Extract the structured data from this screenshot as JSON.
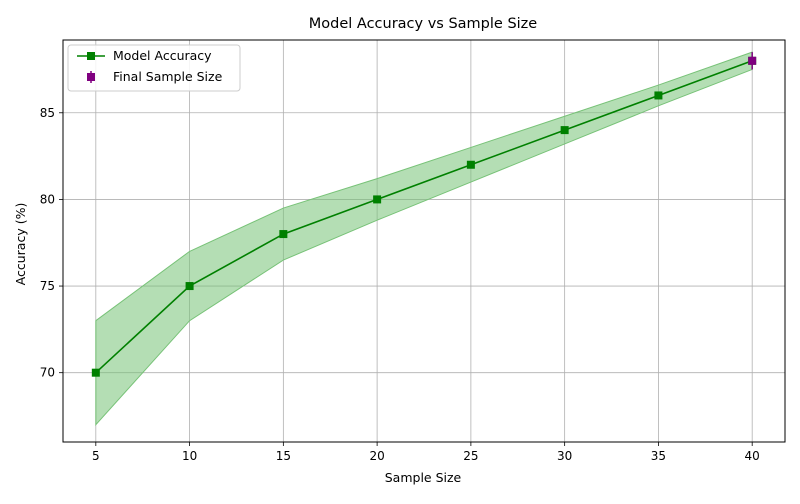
{
  "chart_data": {
    "type": "line",
    "title": "Model Accuracy vs Sample Size",
    "xlabel": "Sample Size",
    "ylabel": "Accuracy (%)",
    "xlim": [
      3.25,
      41.75
    ],
    "ylim": [
      66.0,
      89.2
    ],
    "x_ticks": [
      5,
      10,
      15,
      20,
      25,
      30,
      35,
      40
    ],
    "y_ticks": [
      70,
      75,
      80,
      85
    ],
    "grid": true,
    "legend_position": "top-left",
    "series": [
      {
        "name": "Model Accuracy",
        "color": "#008000",
        "marker": "square",
        "x": [
          5,
          10,
          15,
          20,
          25,
          30,
          35,
          40
        ],
        "y": [
          70,
          75,
          78,
          80,
          82,
          84,
          86,
          88
        ],
        "band_lower": [
          67,
          73,
          76.5,
          78.8,
          81,
          83.2,
          85.4,
          87.5
        ],
        "band_upper": [
          73,
          77,
          79.5,
          81.2,
          83,
          84.8,
          86.6,
          88.5
        ],
        "band_color": "#77c277"
      },
      {
        "name": "Final Sample Size",
        "color": "#800080",
        "marker": "square",
        "x": [
          40
        ],
        "y": [
          88
        ],
        "err_lower": [
          87.5
        ],
        "err_upper": [
          88.5
        ]
      }
    ]
  }
}
